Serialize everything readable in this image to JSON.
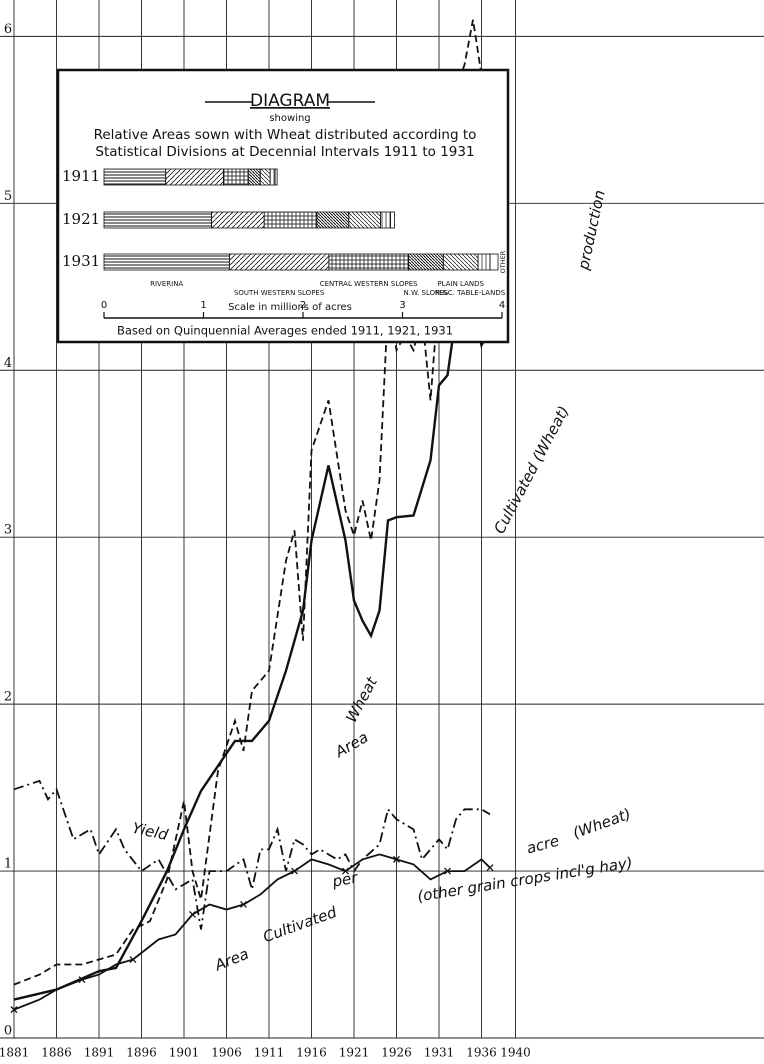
{
  "chart_data": [
    {
      "type": "line",
      "xlim": [
        1881,
        1969
      ],
      "ylim": [
        0,
        6.2
      ],
      "xticks": [
        1881,
        1886,
        1891,
        1896,
        1901,
        1906,
        1911,
        1916,
        1921,
        1926,
        1931,
        1936,
        1940
      ],
      "yticks": [
        0,
        1,
        2,
        3,
        4,
        5,
        6
      ],
      "grid": true,
      "annotations": [
        "Wheat",
        "production",
        "Area",
        "Cultivated (Wheat)",
        "Yield",
        "per",
        "acre",
        "(Wheat)",
        "Area",
        "Cultivated",
        "(other grain crops incl'g hay)"
      ],
      "series": [
        {
          "color": "#111",
          "dash": "dashed",
          "x": [
            1881,
            1884,
            1886,
            1889,
            1891,
            1893,
            1895,
            1897,
            1899,
            1901,
            1902,
            1903,
            1905,
            1907,
            1908,
            1909,
            1911,
            1913,
            1914,
            1915,
            1916,
            1918,
            1920,
            1921,
            1922,
            1923,
            1924,
            1925,
            1926,
            1927,
            1928,
            1929,
            1930,
            1931,
            1932,
            1933,
            1934,
            1935,
            1936,
            1937
          ],
          "values": [
            0.32,
            0.38,
            0.44,
            0.44,
            0.47,
            0.5,
            0.65,
            0.7,
            0.95,
            1.42,
            1.0,
            0.83,
            1.6,
            1.9,
            1.72,
            2.08,
            2.2,
            2.86,
            3.04,
            2.38,
            3.52,
            3.82,
            3.16,
            3.01,
            3.22,
            2.98,
            3.34,
            4.39,
            4.12,
            4.21,
            4.12,
            4.33,
            3.82,
            4.48,
            4.66,
            5.68,
            5.83,
            6.1,
            5.77,
            5.77
          ]
        },
        {
          "color": "#111",
          "dash": "solid",
          "x": [
            1881,
            1886,
            1891,
            1893,
            1896,
            1899,
            1901,
            1903,
            1905,
            1907,
            1909,
            1911,
            1913,
            1915,
            1916,
            1918,
            1920,
            1921,
            1922,
            1923,
            1924,
            1925,
            1926,
            1928,
            1930,
            1931,
            1932,
            1933,
            1934,
            1935,
            1936,
            1937
          ],
          "values": [
            0.23,
            0.29,
            0.4,
            0.42,
            0.7,
            1.0,
            1.25,
            1.48,
            1.63,
            1.78,
            1.78,
            1.9,
            2.2,
            2.56,
            2.98,
            3.43,
            2.98,
            2.62,
            2.5,
            2.41,
            2.56,
            3.1,
            3.12,
            3.13,
            3.46,
            3.91,
            3.97,
            4.33,
            4.42,
            4.39,
            4.15,
            4.24
          ]
        },
        {
          "color": "#111",
          "dash": "dashdot",
          "x": [
            1881,
            1884,
            1885,
            1886,
            1888,
            1890,
            1891,
            1893,
            1894,
            1896,
            1898,
            1900,
            1901,
            1902,
            1903,
            1904,
            1906,
            1908,
            1909,
            1910,
            1911,
            1912,
            1913,
            1914,
            1915,
            1916,
            1917,
            1919,
            1920,
            1921,
            1922,
            1924,
            1925,
            1926,
            1928,
            1929,
            1931,
            1932,
            1933,
            1934,
            1935,
            1936,
            1937
          ],
          "values": [
            1.49,
            1.54,
            1.43,
            1.49,
            1.19,
            1.25,
            1.1,
            1.25,
            1.13,
            1.0,
            1.07,
            0.89,
            0.92,
            0.95,
            0.65,
            1.0,
            1.0,
            1.07,
            0.89,
            1.13,
            1.13,
            1.25,
            1.0,
            1.19,
            1.16,
            1.1,
            1.13,
            1.07,
            1.1,
            1.0,
            1.07,
            1.16,
            1.37,
            1.31,
            1.25,
            1.07,
            1.19,
            1.13,
            1.31,
            1.37,
            1.37,
            1.37,
            1.34
          ]
        },
        {
          "color": "#111",
          "dash": "solid",
          "marker": "x",
          "x": [
            1881,
            1884,
            1886,
            1889,
            1891,
            1893,
            1895,
            1898,
            1900,
            1902,
            1904,
            1906,
            1908,
            1910,
            1912,
            1914,
            1916,
            1918,
            1920,
            1922,
            1924,
            1926,
            1928,
            1930,
            1932,
            1934,
            1936,
            1937
          ],
          "values": [
            0.17,
            0.23,
            0.29,
            0.35,
            0.38,
            0.44,
            0.47,
            0.59,
            0.62,
            0.74,
            0.8,
            0.77,
            0.8,
            0.86,
            0.95,
            1.0,
            1.07,
            1.04,
            1.0,
            1.07,
            1.1,
            1.07,
            1.04,
            0.95,
            1.0,
            1.0,
            1.07,
            1.02
          ]
        }
      ]
    },
    {
      "type": "bar",
      "orientation": "horizontal",
      "stacked": true,
      "title": "DIAGRAM",
      "subtitle": "showing",
      "description": [
        "Relative Areas sown with Wheat distributed according to",
        "Statistical Divisions at Decennial Intervals 1911 to 1931"
      ],
      "categories": [
        "1911",
        "1921",
        "1931"
      ],
      "xlim": [
        0,
        4
      ],
      "xticks": [
        0,
        1,
        2,
        3,
        4
      ],
      "xlabel": "Scale in millions of acres",
      "note": "Based on Quinquennial Averages ended 1911, 1921, 1931",
      "series": [
        {
          "name": "RIVERINA",
          "values": [
            0.62,
            1.08,
            1.26
          ]
        },
        {
          "name": "SOUTH WESTERN SLOPES",
          "values": [
            0.58,
            0.53,
            1.0
          ]
        },
        {
          "name": "CENTRAL WESTERN SLOPES",
          "values": [
            0.25,
            0.53,
            0.8
          ]
        },
        {
          "name": "N.W. SLOPES",
          "values": [
            0.12,
            0.32,
            0.35
          ]
        },
        {
          "name": "PLAIN LANDS",
          "values": [
            0.1,
            0.32,
            0.35
          ]
        },
        {
          "name": "N.&C. TABLE-LANDS",
          "values": [
            0.05,
            0.1,
            0.12
          ]
        },
        {
          "name": "OTHER",
          "values": [
            0.02,
            0.04,
            0.08
          ]
        }
      ]
    }
  ]
}
